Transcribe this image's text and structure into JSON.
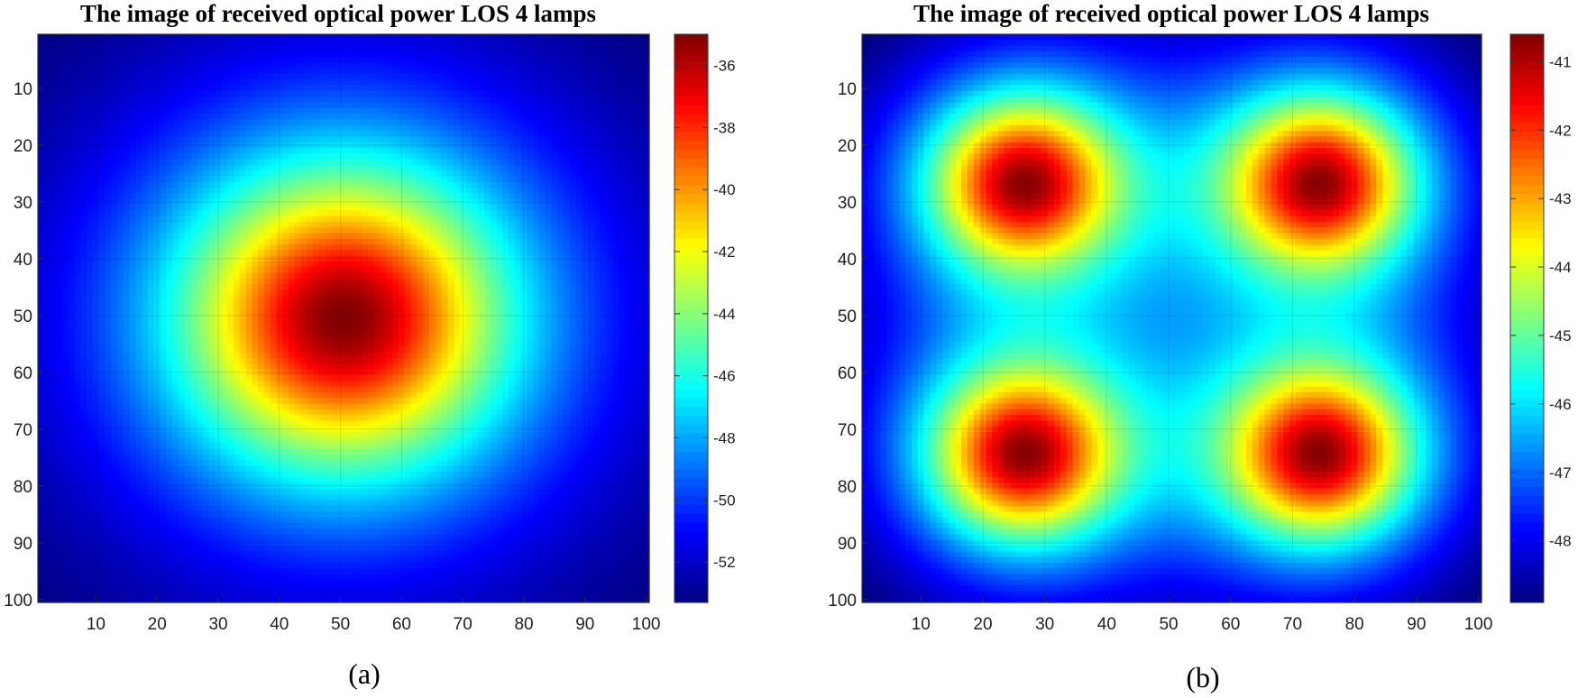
{
  "chart_data": [
    {
      "panel": "a",
      "type": "heatmap",
      "title": "The image of received optical power LOS 4 lamps",
      "caption": "(a)",
      "x_ticks": [
        "10",
        "20",
        "30",
        "40",
        "50",
        "60",
        "70",
        "80",
        "90",
        "100"
      ],
      "y_ticks": [
        "10",
        "20",
        "30",
        "40",
        "50",
        "60",
        "70",
        "80",
        "90",
        "100"
      ],
      "xlim": [
        0,
        100
      ],
      "ylim": [
        0,
        100
      ],
      "y_reversed": true,
      "grid": true,
      "colorbar": {
        "ticks": [
          "-36",
          "-38",
          "-40",
          "-42",
          "-44",
          "-46",
          "-48",
          "-50",
          "-52"
        ],
        "tick_values": [
          -36,
          -38,
          -40,
          -42,
          -44,
          -46,
          -48,
          -50,
          -52
        ],
        "range": [
          -53.3,
          -35.0
        ],
        "colormap": "jet"
      },
      "model": {
        "form": "single-peak",
        "peak_value": -35.0,
        "corner_value": -53.2,
        "lamp_positions": [
          [
            50,
            50
          ]
        ]
      }
    },
    {
      "panel": "b",
      "type": "heatmap",
      "title": "The image of received optical power LOS 4 lamps",
      "caption": "(b)",
      "x_ticks": [
        "10",
        "20",
        "30",
        "40",
        "50",
        "60",
        "70",
        "80",
        "90",
        "100"
      ],
      "y_ticks": [
        "10",
        "20",
        "30",
        "40",
        "50",
        "60",
        "70",
        "80",
        "90",
        "100"
      ],
      "xlim": [
        0,
        100
      ],
      "ylim": [
        0,
        100
      ],
      "y_reversed": true,
      "grid": true,
      "colorbar": {
        "ticks": [
          "-41",
          "-42",
          "-43",
          "-44",
          "-45",
          "-46",
          "-47",
          "-48"
        ],
        "tick_values": [
          -41,
          -42,
          -43,
          -44,
          -45,
          -46,
          -47,
          -48
        ],
        "range": [
          -48.9,
          -40.6
        ],
        "colormap": "jet"
      },
      "model": {
        "form": "four-lamp",
        "peak_value": -40.65,
        "corner_value": -48.85,
        "lamp_positions": [
          [
            26,
            26
          ],
          [
            74,
            26
          ],
          [
            26,
            74
          ],
          [
            74,
            74
          ]
        ]
      }
    }
  ]
}
